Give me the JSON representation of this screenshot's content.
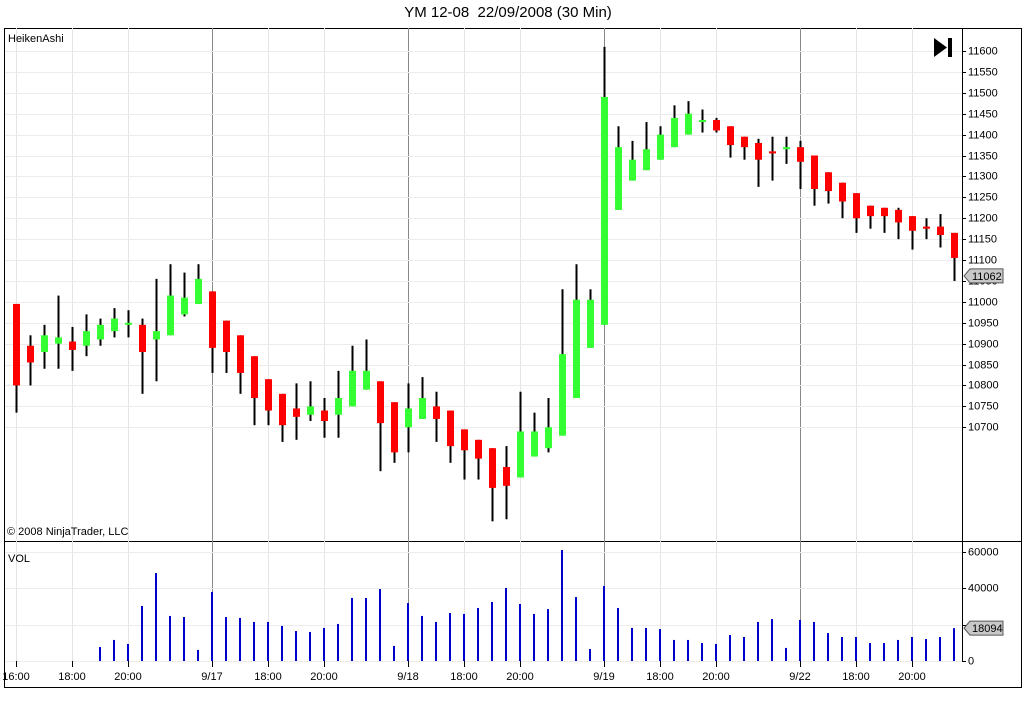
{
  "chart_data": [
    {
      "type": "candlestick",
      "title": "YM 12-08  22/09/2008 (30 Min)",
      "label": "HeikenAshi",
      "copyright": "© 2008 NinjaTrader, LLC",
      "categories": [
        "16:00",
        null,
        null,
        null,
        "18:00",
        null,
        null,
        null,
        "20:00",
        null,
        null,
        null,
        null,
        null,
        "9/17",
        null,
        null,
        null,
        "18:00",
        null,
        null,
        null,
        "20:00",
        null,
        null,
        null,
        null,
        null,
        "9/18",
        null,
        null,
        null,
        "18:00",
        null,
        null,
        null,
        "20:00",
        null,
        null,
        null,
        null,
        null,
        "9/19",
        null,
        null,
        null,
        "18:00",
        null,
        null,
        null,
        "20:00",
        null,
        null,
        null,
        null,
        null,
        "9/22",
        null,
        null,
        null,
        "18:00",
        null,
        null,
        null,
        "20:00",
        null,
        null,
        null
      ],
      "open": [
        10995,
        10895,
        10880,
        10900,
        10905,
        10895,
        10910,
        10930,
        10945,
        10945,
        10910,
        10920,
        10970,
        10995,
        11025,
        10955,
        10920,
        10870,
        10815,
        10780,
        10745,
        10730,
        10740,
        10730,
        10750,
        10790,
        10810,
        10760,
        10700,
        10720,
        10750,
        10740,
        10695,
        10670,
        10650,
        10605,
        10580,
        10630,
        10650,
        10680,
        10770,
        10890,
        10945,
        11220,
        11290,
        11315,
        11340,
        11370,
        11400,
        11430,
        11435,
        11420,
        11395,
        11380,
        11360,
        11365,
        11370,
        11350,
        11310,
        11285,
        11260,
        11230,
        11225,
        11220,
        11205,
        11180,
        11180,
        11165
      ],
      "high": [
        10995,
        10920,
        10945,
        11015,
        10940,
        10970,
        10960,
        10985,
        10980,
        10960,
        11055,
        11090,
        11070,
        11090,
        11025,
        10955,
        10920,
        10870,
        10815,
        10780,
        10805,
        10810,
        10770,
        10835,
        10895,
        10910,
        10810,
        10760,
        10805,
        10820,
        10785,
        10740,
        10695,
        10670,
        10650,
        10655,
        10785,
        10735,
        10770,
        11030,
        11090,
        11030,
        11610,
        11420,
        11385,
        11430,
        11420,
        11470,
        11480,
        11460,
        11440,
        11420,
        11395,
        11390,
        11395,
        11395,
        11385,
        11350,
        11310,
        11285,
        11260,
        11230,
        11225,
        11225,
        11205,
        11200,
        11210,
        11165
      ],
      "low": [
        10735,
        10800,
        10840,
        10840,
        10835,
        10870,
        10895,
        10915,
        10915,
        10780,
        10810,
        10920,
        10965,
        10995,
        10830,
        10830,
        10780,
        10705,
        10705,
        10665,
        10670,
        10715,
        10675,
        10675,
        10750,
        10790,
        10595,
        10615,
        10640,
        10720,
        10665,
        10615,
        10575,
        10575,
        10475,
        10480,
        10580,
        10630,
        10640,
        10680,
        10770,
        10890,
        10945,
        11220,
        11290,
        11315,
        11340,
        11370,
        11400,
        11405,
        11405,
        11345,
        11340,
        11275,
        11290,
        11330,
        11270,
        11230,
        11235,
        11200,
        11165,
        11175,
        11165,
        11150,
        11125,
        11150,
        11130,
        11050
      ],
      "close": [
        10800,
        10855,
        10920,
        10915,
        10885,
        10930,
        10945,
        10960,
        10950,
        10880,
        10930,
        11015,
        11010,
        11055,
        10890,
        10880,
        10830,
        10770,
        10740,
        10705,
        10725,
        10750,
        10715,
        10770,
        10835,
        10835,
        10710,
        10640,
        10745,
        10770,
        10720,
        10655,
        10645,
        10625,
        10555,
        10560,
        10690,
        10690,
        10700,
        10875,
        11005,
        11005,
        11490,
        11370,
        11340,
        11365,
        11400,
        11440,
        11450,
        11435,
        11410,
        11375,
        11370,
        11340,
        11355,
        11370,
        11335,
        11270,
        11265,
        11240,
        11200,
        11205,
        11205,
        11190,
        11170,
        11175,
        11160,
        11105
      ],
      "up_color": "#33ff33",
      "down_color": "#ff0000",
      "wick_color": "#000000",
      "last_price": 11062,
      "ylim": [
        10428,
        11655
      ],
      "yticks": [
        10700,
        10750,
        10800,
        10850,
        10900,
        10950,
        11000,
        11050,
        11100,
        11150,
        11200,
        11250,
        11300,
        11350,
        11400,
        11450,
        11500,
        11550,
        11600
      ],
      "grid": true
    },
    {
      "type": "bar",
      "label": "VOL",
      "color": "#0000cc",
      "values": [
        0,
        0,
        0,
        0,
        0,
        0,
        7700,
        11600,
        9400,
        30300,
        48400,
        24800,
        24200,
        6100,
        38000,
        24200,
        23700,
        21500,
        21500,
        19300,
        16500,
        16000,
        18200,
        20400,
        34700,
        34700,
        39600,
        8300,
        31900,
        24800,
        21500,
        26400,
        25900,
        29200,
        32500,
        40200,
        31400,
        25900,
        28600,
        61100,
        35200,
        6600,
        41300,
        29200,
        18200,
        18200,
        17600,
        11600,
        11600,
        9900,
        9400,
        14300,
        13200,
        21500,
        23100,
        7200,
        22600,
        21500,
        15400,
        13200,
        13200,
        9900,
        9900,
        11600,
        13200,
        12100,
        13200,
        18094
      ],
      "ylim": [
        -3850,
        66060
      ],
      "yticks": [
        0,
        20000,
        40000,
        60000
      ],
      "grid": true
    }
  ]
}
